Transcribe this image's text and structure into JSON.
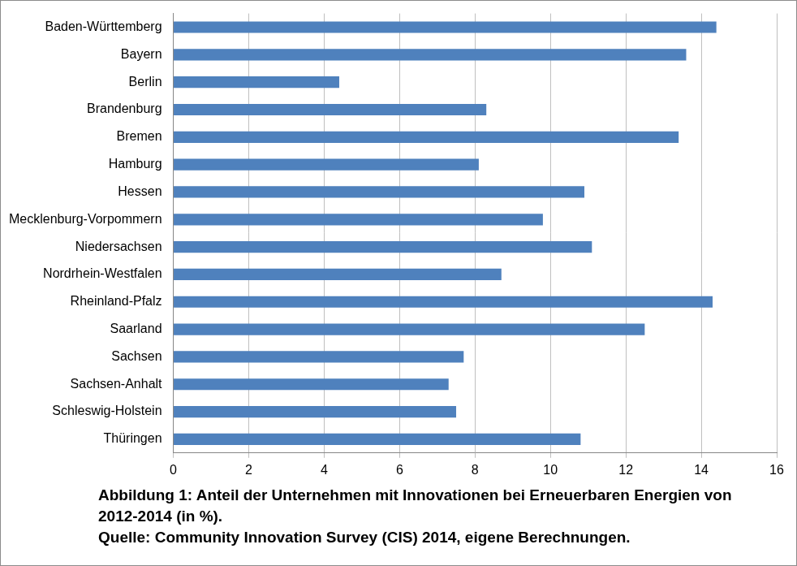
{
  "chart_data": {
    "type": "bar",
    "orientation": "horizontal",
    "title": "Abbildung 1: Anteil der Unternehmen mit Innovationen bei Erneuerbaren Energien von 2012-2014 (in %).",
    "subtitle": "Quelle: Community Innovation Survey (CIS) 2014, eigene Berechnungen.",
    "categories": [
      "Baden-Württemberg",
      "Bayern",
      "Berlin",
      "Brandenburg",
      "Bremen",
      "Hamburg",
      "Hessen",
      "Mecklenburg-Vorpommern",
      "Niedersachsen",
      "Nordrhein-Westfalen",
      "Rheinland-Pfalz",
      "Saarland",
      "Sachsen",
      "Sachsen-Anhalt",
      "Schleswig-Holstein",
      "Thüringen"
    ],
    "values": [
      14.4,
      13.6,
      4.4,
      8.3,
      13.4,
      8.1,
      10.9,
      9.8,
      11.1,
      8.7,
      14.3,
      12.5,
      7.7,
      7.3,
      7.5,
      10.8
    ],
    "color": "#4f81bd",
    "xlim": [
      0,
      16
    ],
    "xticks": [
      0,
      2,
      4,
      6,
      8,
      10,
      12,
      14,
      16
    ],
    "grid": true
  }
}
